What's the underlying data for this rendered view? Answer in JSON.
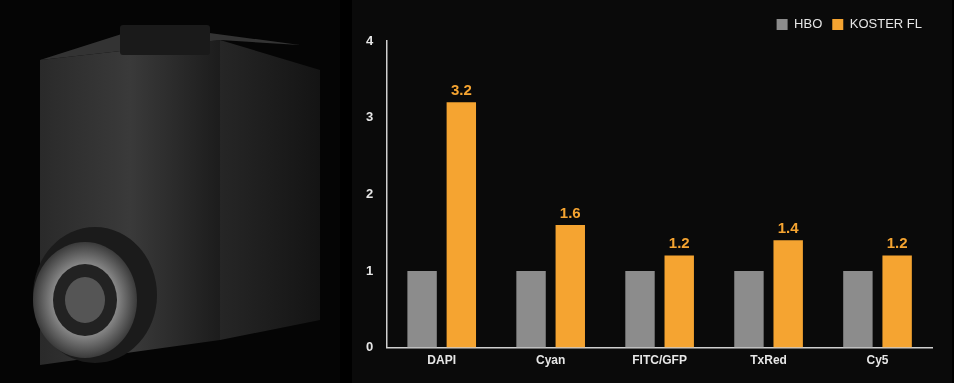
{
  "chart_data": {
    "type": "bar",
    "categories": [
      "DAPI",
      "Cyan",
      "FITC/GFP",
      "TxRed",
      "Cy5"
    ],
    "series": [
      {
        "name": "HBO",
        "color": "#8c8c8c",
        "values": [
          1,
          1,
          1,
          1,
          1
        ]
      },
      {
        "name": "KOSTER FL",
        "color": "#f5a431",
        "values": [
          3.2,
          1.6,
          1.2,
          1.4,
          1.2
        ],
        "data_labels": true
      }
    ],
    "ylim": [
      0,
      4
    ],
    "yticks": [
      0,
      1,
      2,
      3,
      4
    ],
    "grid": false,
    "legend": "upper right"
  }
}
